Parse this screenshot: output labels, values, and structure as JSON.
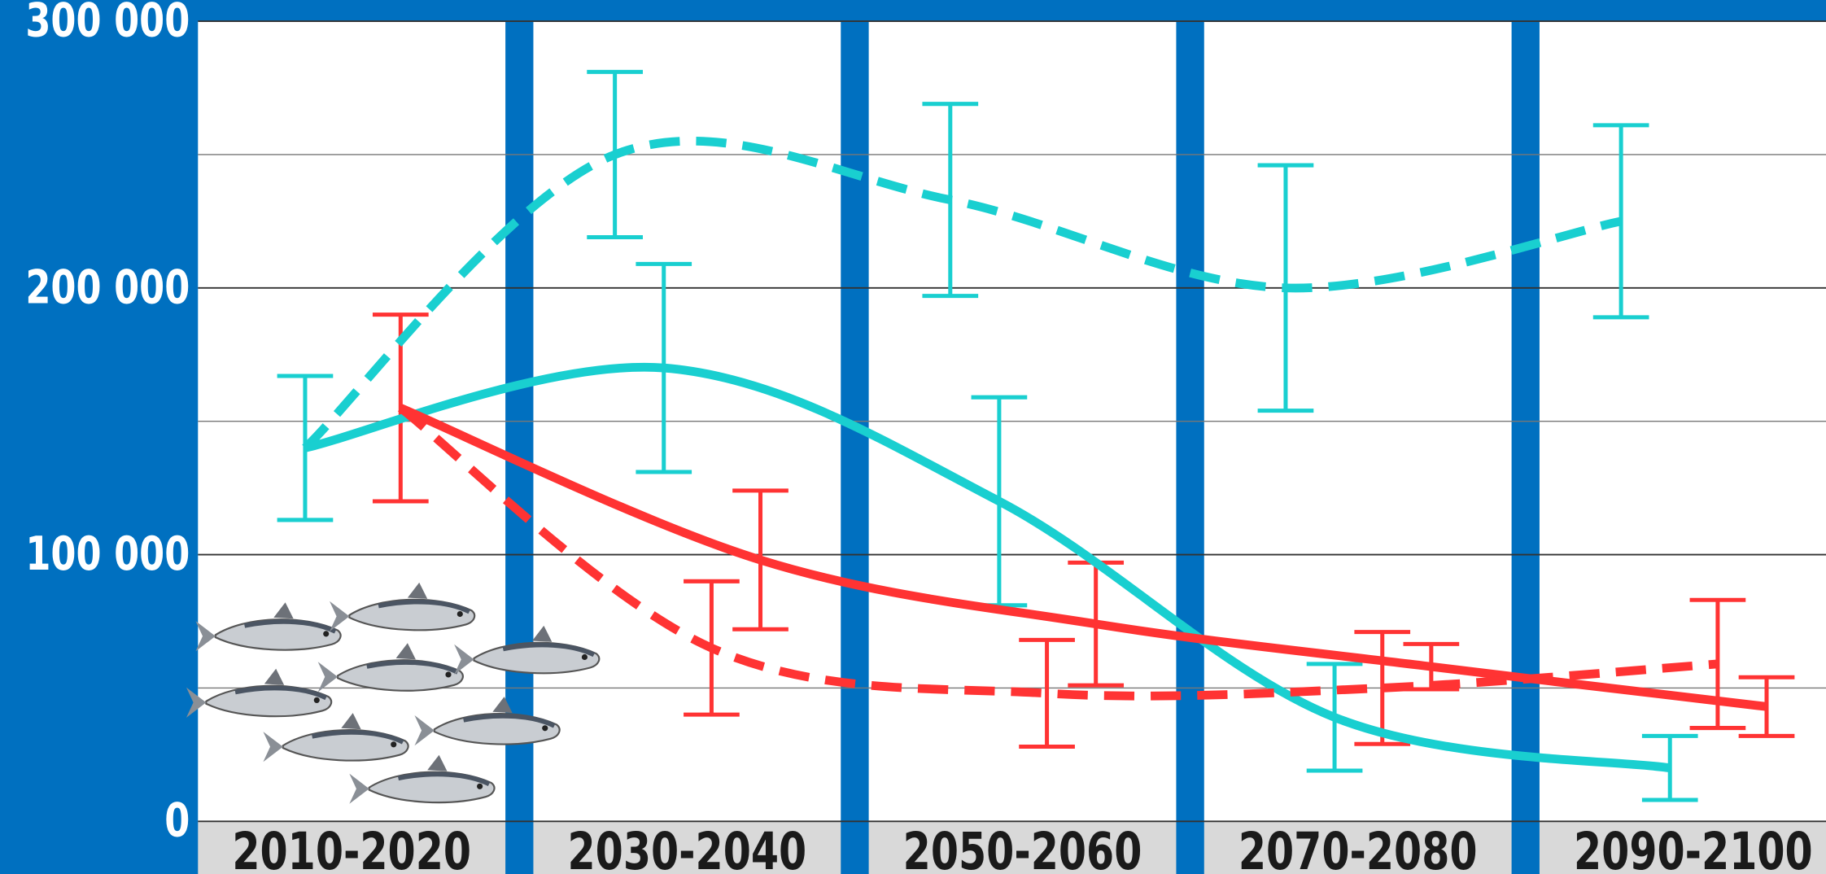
{
  "chart_data": {
    "type": "line",
    "categories": [
      "2010-2020",
      "2030-2040",
      "2050-2060",
      "2070-2080",
      "2090-2100"
    ],
    "series": [
      {
        "color": "#19cfd0",
        "dash": true,
        "values": [
          140000,
          250000,
          233000,
          200000,
          225000
        ],
        "errors": [
          27000,
          31000,
          36000,
          46000,
          36000
        ]
      },
      {
        "color": "#19cfd0",
        "dash": false,
        "values": [
          140000,
          170000,
          120000,
          39000,
          20000
        ],
        "errors": [
          null,
          39000,
          39000,
          20000,
          12000
        ]
      },
      {
        "color": "#ff3333",
        "dash": false,
        "values": [
          155000,
          98000,
          74000,
          58000,
          43000
        ],
        "errors": [
          35000,
          26000,
          23000,
          8500,
          11000
        ]
      },
      {
        "color": "#ff3333",
        "dash": true,
        "values": [
          155000,
          65000,
          48000,
          50000,
          59000
        ],
        "errors": [
          null,
          25000,
          20000,
          21000,
          24000
        ]
      }
    ],
    "ylim": [
      0,
      300000
    ],
    "yticks": [
      {
        "value": 0,
        "label": "0"
      },
      {
        "value": 100000,
        "label": "100 000"
      },
      {
        "value": 200000,
        "label": "200 000"
      },
      {
        "value": 300000,
        "label": "300 000"
      }
    ],
    "minor_yticks": [
      50000,
      150000,
      250000
    ],
    "grid": true
  }
}
